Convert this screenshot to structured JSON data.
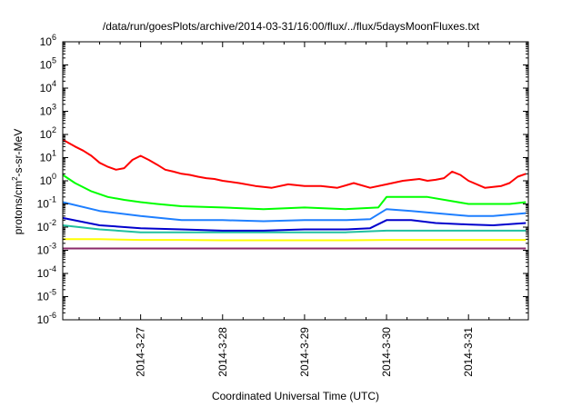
{
  "chart_data": {
    "type": "line",
    "title": "/data/run/goesPlots/archive/2014-03-31/16:00/flux/../flux/5daysMoonFluxes.txt",
    "xlabel": "Coordinated Universal Time (UTC)",
    "ylabel_prefix": "protons/cm",
    "ylabel_sup": "2",
    "ylabel_suffix": "-s-sr-MeV",
    "yscale": "log",
    "ylim_exp": [
      -6,
      6
    ],
    "ytick_exps": [
      "-6",
      "-5",
      "-4",
      "-3",
      "-2",
      "-1",
      "0",
      "1",
      "2",
      "3",
      "4",
      "5",
      "6"
    ],
    "xticks": [
      "2014-3-27",
      "2014-3-28",
      "2014-3-29",
      "2014-3-30",
      "2014-3-31"
    ],
    "xlim_days": [
      26.05,
      31.73
    ],
    "grid": false,
    "series": [
      {
        "color": "#ff0000",
        "x": [
          26.05,
          26.2,
          26.3,
          26.4,
          26.5,
          26.6,
          26.7,
          26.8,
          26.9,
          27.0,
          27.1,
          27.2,
          27.3,
          27.4,
          27.5,
          27.6,
          27.7,
          27.8,
          27.9,
          28.0,
          28.2,
          28.4,
          28.6,
          28.8,
          29.0,
          29.2,
          29.4,
          29.6,
          29.8,
          30.0,
          30.2,
          30.4,
          30.5,
          30.6,
          30.7,
          30.8,
          30.9,
          31.0,
          31.2,
          31.4,
          31.5,
          31.6,
          31.7
        ],
        "values": [
          60,
          30,
          20,
          12,
          6,
          4,
          3,
          3.5,
          8,
          12,
          8,
          5,
          3,
          2.5,
          2,
          1.8,
          1.5,
          1.3,
          1.2,
          1.0,
          0.8,
          0.6,
          0.5,
          0.7,
          0.6,
          0.6,
          0.5,
          0.8,
          0.5,
          0.7,
          1.0,
          1.2,
          1.0,
          1.1,
          1.3,
          2.5,
          1.8,
          1.0,
          0.5,
          0.6,
          0.8,
          1.5,
          2.0
        ]
      },
      {
        "color": "#00ff00",
        "x": [
          26.05,
          26.2,
          26.4,
          26.6,
          26.8,
          27.0,
          27.2,
          27.5,
          28.0,
          28.5,
          29.0,
          29.5,
          29.9,
          30.0,
          30.5,
          31.0,
          31.5,
          31.7
        ],
        "values": [
          1.8,
          0.8,
          0.35,
          0.2,
          0.15,
          0.12,
          0.1,
          0.08,
          0.07,
          0.06,
          0.07,
          0.06,
          0.07,
          0.2,
          0.2,
          0.1,
          0.1,
          0.12
        ]
      },
      {
        "color": "#1e7fff",
        "x": [
          26.05,
          26.5,
          27.0,
          27.5,
          28.0,
          28.5,
          29.0,
          29.5,
          29.8,
          30.0,
          30.3,
          30.6,
          31.0,
          31.3,
          31.7
        ],
        "values": [
          0.12,
          0.05,
          0.03,
          0.02,
          0.02,
          0.018,
          0.02,
          0.02,
          0.022,
          0.06,
          0.05,
          0.04,
          0.03,
          0.03,
          0.04
        ]
      },
      {
        "color": "#0000cc",
        "x": [
          26.05,
          26.5,
          27.0,
          27.5,
          28.0,
          28.5,
          29.0,
          29.5,
          29.8,
          30.0,
          30.3,
          30.6,
          31.0,
          31.3,
          31.7
        ],
        "values": [
          0.025,
          0.012,
          0.009,
          0.008,
          0.007,
          0.007,
          0.008,
          0.008,
          0.009,
          0.02,
          0.02,
          0.015,
          0.013,
          0.012,
          0.015
        ]
      },
      {
        "color": "#20c0a0",
        "x": [
          26.05,
          26.5,
          27.0,
          27.5,
          28.0,
          28.5,
          29.0,
          29.5,
          30.0,
          30.5,
          31.0,
          31.7
        ],
        "values": [
          0.012,
          0.008,
          0.006,
          0.006,
          0.006,
          0.006,
          0.006,
          0.006,
          0.007,
          0.007,
          0.007,
          0.007
        ]
      },
      {
        "color": "#ffff00",
        "x": [
          26.05,
          26.5,
          27.0,
          27.5,
          28.0,
          28.5,
          29.0,
          29.5,
          30.0,
          30.5,
          31.0,
          31.7
        ],
        "values": [
          0.003,
          0.003,
          0.0028,
          0.0028,
          0.0027,
          0.0027,
          0.0027,
          0.0027,
          0.0028,
          0.0028,
          0.0028,
          0.0028
        ]
      },
      {
        "color": "#8b2a6a",
        "x": [
          26.05,
          26.5,
          27.0,
          27.5,
          28.0,
          28.5,
          29.0,
          29.5,
          30.0,
          30.5,
          31.0,
          31.7
        ],
        "values": [
          0.0012,
          0.0012,
          0.0012,
          0.0012,
          0.0012,
          0.0012,
          0.0012,
          0.0012,
          0.0012,
          0.0012,
          0.0012,
          0.0012
        ]
      }
    ]
  }
}
